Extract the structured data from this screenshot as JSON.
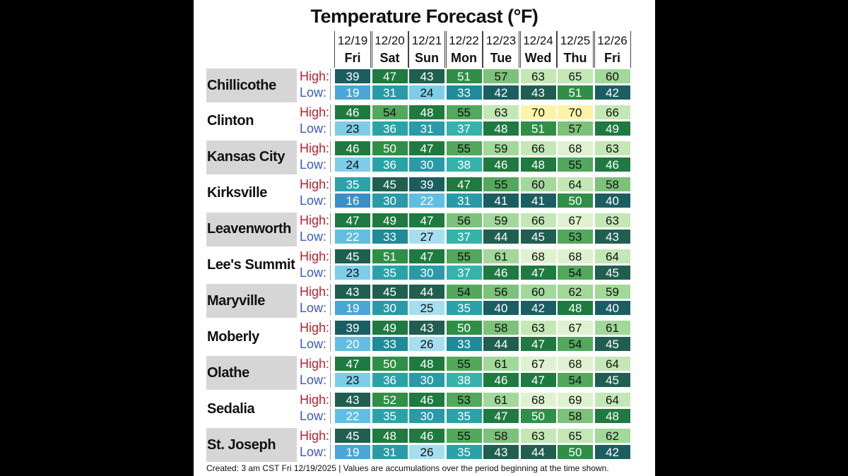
{
  "chart_data": {
    "type": "table",
    "title": "Temperature Forecast (°F)",
    "row_labels": {
      "high": "High:",
      "low": "Low:"
    },
    "days": [
      {
        "date": "12/19",
        "dow": "Fri"
      },
      {
        "date": "12/20",
        "dow": "Sat"
      },
      {
        "date": "12/21",
        "dow": "Sun"
      },
      {
        "date": "12/22",
        "dow": "Mon"
      },
      {
        "date": "12/23",
        "dow": "Tue"
      },
      {
        "date": "12/24",
        "dow": "Wed"
      },
      {
        "date": "12/25",
        "dow": "Thu"
      },
      {
        "date": "12/26",
        "dow": "Fri"
      }
    ],
    "locations": [
      {
        "name": "Chillicothe",
        "high": [
          39,
          47,
          43,
          51,
          57,
          63,
          65,
          60
        ],
        "low": [
          19,
          31,
          24,
          33,
          42,
          43,
          51,
          42
        ]
      },
      {
        "name": "Clinton",
        "high": [
          46,
          54,
          48,
          55,
          63,
          70,
          70,
          66
        ],
        "low": [
          23,
          36,
          31,
          37,
          48,
          51,
          57,
          49
        ]
      },
      {
        "name": "Kansas City",
        "high": [
          46,
          50,
          47,
          55,
          59,
          66,
          68,
          63
        ],
        "low": [
          24,
          36,
          30,
          38,
          46,
          48,
          55,
          46
        ]
      },
      {
        "name": "Kirksville",
        "high": [
          35,
          45,
          39,
          47,
          55,
          60,
          64,
          58
        ],
        "low": [
          16,
          30,
          22,
          31,
          41,
          41,
          50,
          40
        ]
      },
      {
        "name": "Leavenworth",
        "high": [
          47,
          49,
          47,
          56,
          59,
          66,
          67,
          63
        ],
        "low": [
          22,
          33,
          27,
          37,
          44,
          45,
          53,
          43
        ]
      },
      {
        "name": "Lee's Summit",
        "high": [
          45,
          51,
          47,
          55,
          61,
          68,
          68,
          64
        ],
        "low": [
          23,
          35,
          30,
          37,
          46,
          47,
          54,
          45
        ]
      },
      {
        "name": "Maryville",
        "high": [
          43,
          45,
          44,
          54,
          56,
          60,
          62,
          59
        ],
        "low": [
          19,
          30,
          25,
          35,
          40,
          42,
          48,
          40
        ]
      },
      {
        "name": "Moberly",
        "high": [
          39,
          49,
          43,
          50,
          58,
          63,
          67,
          61
        ],
        "low": [
          20,
          33,
          26,
          33,
          44,
          47,
          54,
          45
        ]
      },
      {
        "name": "Olathe",
        "high": [
          47,
          50,
          48,
          55,
          61,
          67,
          68,
          64
        ],
        "low": [
          23,
          36,
          30,
          38,
          46,
          47,
          54,
          45
        ]
      },
      {
        "name": "Sedalia",
        "high": [
          43,
          52,
          46,
          53,
          61,
          68,
          69,
          64
        ],
        "low": [
          22,
          35,
          30,
          35,
          47,
          50,
          58,
          48
        ]
      },
      {
        "name": "St. Joseph",
        "high": [
          45,
          48,
          46,
          55,
          58,
          63,
          65,
          62
        ],
        "low": [
          19,
          31,
          26,
          35,
          43,
          44,
          50,
          42
        ]
      }
    ],
    "color_scale": [
      {
        "max": 16,
        "bg": "#3a8fc7",
        "fg": "#ffffff"
      },
      {
        "max": 19,
        "bg": "#4aa6d6",
        "fg": "#ffffff"
      },
      {
        "max": 22,
        "bg": "#62bde2",
        "fg": "#ffffff"
      },
      {
        "max": 24,
        "bg": "#7dcde8",
        "fg": "#111111"
      },
      {
        "max": 27,
        "bg": "#a6def0",
        "fg": "#111111"
      },
      {
        "max": 29,
        "bg": "#c6ecf5",
        "fg": "#111111"
      },
      {
        "max": 31,
        "bg": "#2a9aa8",
        "fg": "#ffffff"
      },
      {
        "max": 34,
        "bg": "#1f8a9a",
        "fg": "#ffffff"
      },
      {
        "max": 36,
        "bg": "#2aa3a8",
        "fg": "#ffffff"
      },
      {
        "max": 38,
        "bg": "#35b2ab",
        "fg": "#ffffff"
      },
      {
        "max": 42,
        "bg": "#1b5e62",
        "fg": "#ffffff"
      },
      {
        "max": 45,
        "bg": "#205f50",
        "fg": "#ffffff"
      },
      {
        "max": 49,
        "bg": "#1f7a40",
        "fg": "#ffffff"
      },
      {
        "max": 52,
        "bg": "#2f8f47",
        "fg": "#ffffff"
      },
      {
        "max": 55,
        "bg": "#52a85c",
        "fg": "#111111"
      },
      {
        "max": 58,
        "bg": "#7cc27a",
        "fg": "#111111"
      },
      {
        "max": 62,
        "bg": "#a2d89a",
        "fg": "#111111"
      },
      {
        "max": 66,
        "bg": "#c3e8b6",
        "fg": "#111111"
      },
      {
        "max": 69,
        "bg": "#dff2cf",
        "fg": "#111111"
      },
      {
        "max": 200,
        "bg": "#fbf3a8",
        "fg": "#111111"
      }
    ]
  },
  "footer": "Created: 3 am CST Fri 12/19/2025  |  Values are accumulations over the period beginning at the time shown."
}
